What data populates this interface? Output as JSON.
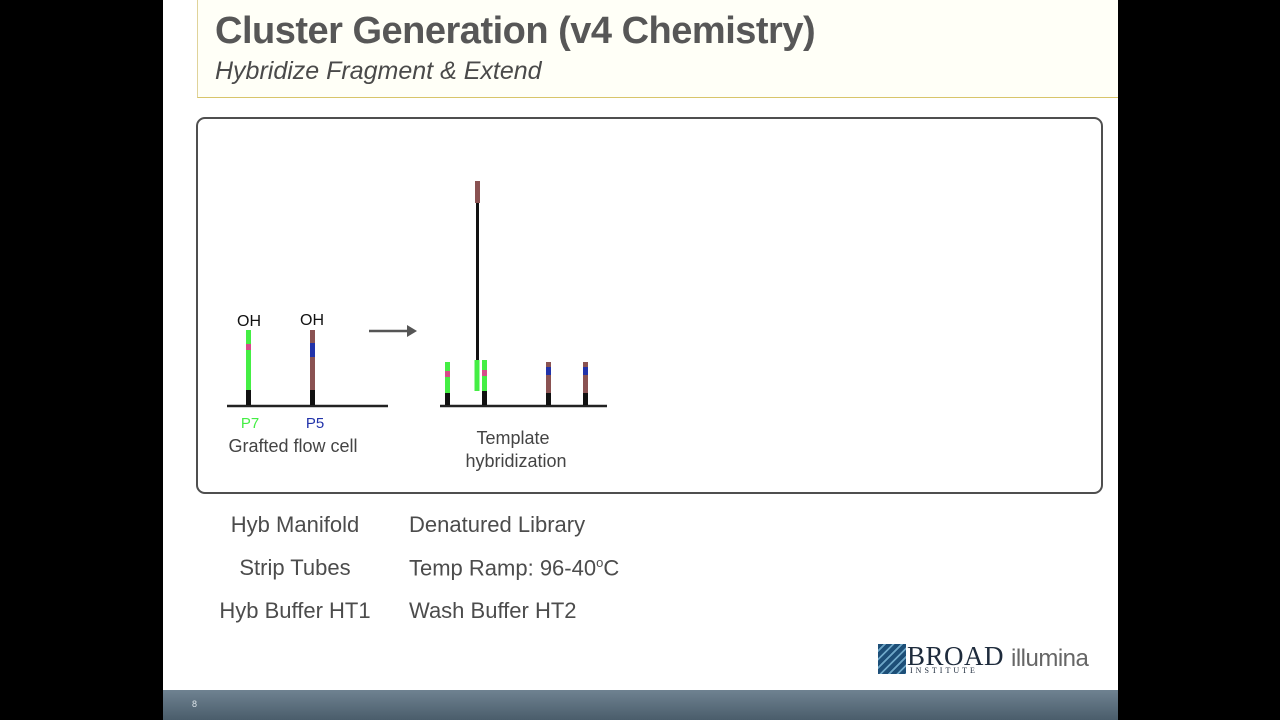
{
  "slide": {
    "title": "Cluster Generation (v4 Chemistry)",
    "subtitle": "Hybridize Fragment & Extend",
    "page_number": "8"
  },
  "diagram": {
    "left_panel": {
      "oh_label_1": "OH",
      "oh_label_2": "OH",
      "primer_1": "P7",
      "primer_2": "P5",
      "caption": "Grafted flow cell"
    },
    "right_panel": {
      "caption_line_1": "Template",
      "caption_line_2": "hybridization"
    },
    "colors": {
      "p7_green": "#44ee44",
      "p5_blue": "#2233aa",
      "strand_brown": "#8a5252",
      "marker_pink": "#d64b8a",
      "arrow_gray": "#555555"
    }
  },
  "materials": {
    "left": [
      "Hyb Manifold",
      "Strip Tubes",
      "Hyb Buffer HT1"
    ],
    "right_1": "Denatured Library",
    "right_2_main": "Temp Ramp: 96-40",
    "right_2_sup": "o",
    "right_2_unit": "C",
    "right_3": "Wash Buffer HT2"
  },
  "logos": {
    "broad_name": "BROAD",
    "broad_sub": "INSTITUTE",
    "illumina": "illumina"
  }
}
